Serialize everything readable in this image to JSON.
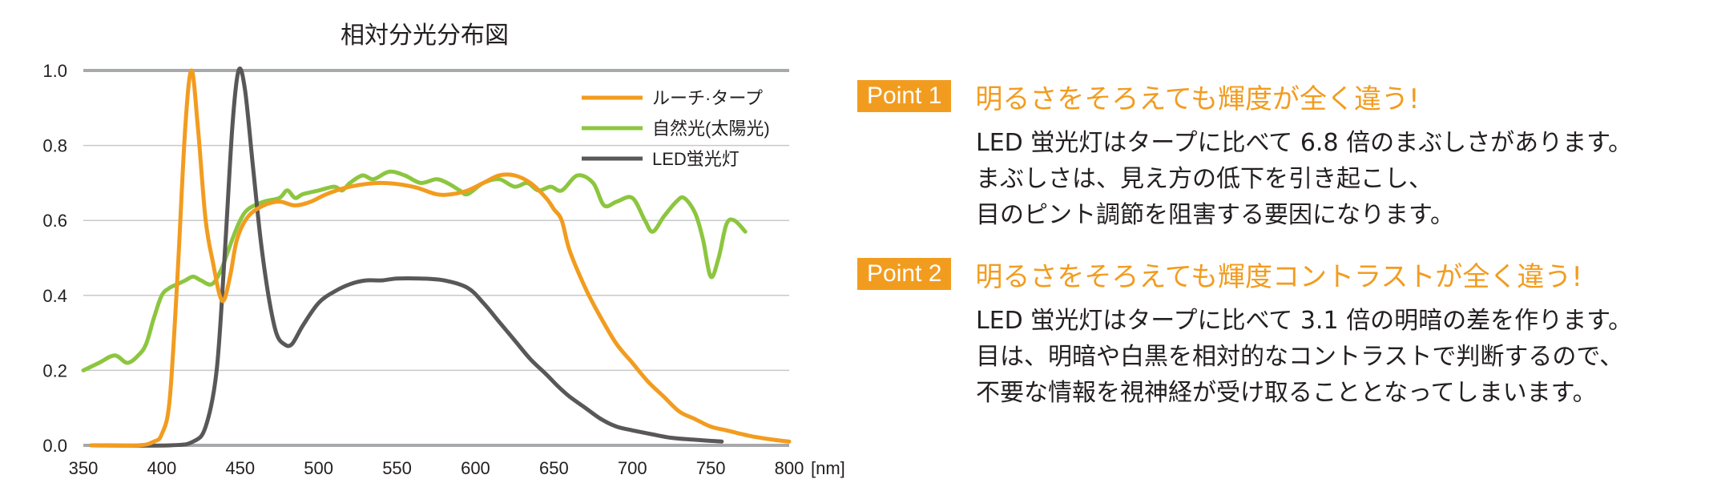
{
  "chart_data": {
    "type": "line",
    "title": "相対分光分布図",
    "xlabel": "",
    "ylabel": "",
    "x_unit_label": "[nm]",
    "xlim": [
      350,
      800
    ],
    "ylim": [
      0,
      1.0
    ],
    "x_ticks": [
      "350",
      "400",
      "450",
      "500",
      "550",
      "600",
      "650",
      "700",
      "750",
      "800"
    ],
    "y_ticks": [
      "0.0",
      "0.2",
      "0.4",
      "0.6",
      "0.8",
      "1.0"
    ],
    "grid": true,
    "legend_position": "top-right",
    "series": [
      {
        "name": "ルーチ·タープ",
        "color": "#f29c1f",
        "points": [
          [
            355,
            0
          ],
          [
            385,
            0
          ],
          [
            395,
            0.01
          ],
          [
            400,
            0.03
          ],
          [
            405,
            0.12
          ],
          [
            410,
            0.45
          ],
          [
            415,
            0.85
          ],
          [
            419,
            1.0
          ],
          [
            423,
            0.85
          ],
          [
            428,
            0.6
          ],
          [
            433,
            0.48
          ],
          [
            437,
            0.4
          ],
          [
            440,
            0.39
          ],
          [
            444,
            0.46
          ],
          [
            448,
            0.55
          ],
          [
            455,
            0.61
          ],
          [
            465,
            0.64
          ],
          [
            475,
            0.65
          ],
          [
            485,
            0.64
          ],
          [
            495,
            0.65
          ],
          [
            505,
            0.67
          ],
          [
            520,
            0.69
          ],
          [
            540,
            0.7
          ],
          [
            560,
            0.69
          ],
          [
            575,
            0.67
          ],
          [
            585,
            0.67
          ],
          [
            595,
            0.68
          ],
          [
            605,
            0.7
          ],
          [
            615,
            0.72
          ],
          [
            625,
            0.72
          ],
          [
            635,
            0.7
          ],
          [
            645,
            0.66
          ],
          [
            650,
            0.63
          ],
          [
            655,
            0.6
          ],
          [
            660,
            0.52
          ],
          [
            670,
            0.42
          ],
          [
            680,
            0.34
          ],
          [
            690,
            0.27
          ],
          [
            700,
            0.22
          ],
          [
            710,
            0.17
          ],
          [
            720,
            0.13
          ],
          [
            730,
            0.09
          ],
          [
            740,
            0.07
          ],
          [
            750,
            0.05
          ],
          [
            760,
            0.04
          ],
          [
            775,
            0.025
          ],
          [
            790,
            0.015
          ],
          [
            800,
            0.01
          ]
        ]
      },
      {
        "name": "自然光(太陽光)",
        "color": "#8cc63f",
        "points": [
          [
            350,
            0.2
          ],
          [
            360,
            0.22
          ],
          [
            370,
            0.24
          ],
          [
            378,
            0.22
          ],
          [
            385,
            0.24
          ],
          [
            390,
            0.27
          ],
          [
            395,
            0.34
          ],
          [
            400,
            0.4
          ],
          [
            405,
            0.42
          ],
          [
            410,
            0.43
          ],
          [
            415,
            0.44
          ],
          [
            420,
            0.45
          ],
          [
            425,
            0.44
          ],
          [
            432,
            0.43
          ],
          [
            438,
            0.47
          ],
          [
            445,
            0.55
          ],
          [
            450,
            0.6
          ],
          [
            455,
            0.63
          ],
          [
            465,
            0.65
          ],
          [
            475,
            0.66
          ],
          [
            480,
            0.68
          ],
          [
            485,
            0.66
          ],
          [
            490,
            0.67
          ],
          [
            500,
            0.68
          ],
          [
            510,
            0.69
          ],
          [
            515,
            0.68
          ],
          [
            520,
            0.7
          ],
          [
            528,
            0.72
          ],
          [
            535,
            0.71
          ],
          [
            545,
            0.73
          ],
          [
            555,
            0.72
          ],
          [
            565,
            0.7
          ],
          [
            575,
            0.71
          ],
          [
            582,
            0.7
          ],
          [
            590,
            0.68
          ],
          [
            595,
            0.67
          ],
          [
            605,
            0.7
          ],
          [
            615,
            0.71
          ],
          [
            625,
            0.69
          ],
          [
            633,
            0.7
          ],
          [
            640,
            0.68
          ],
          [
            648,
            0.69
          ],
          [
            655,
            0.68
          ],
          [
            665,
            0.72
          ],
          [
            675,
            0.7
          ],
          [
            682,
            0.64
          ],
          [
            690,
            0.65
          ],
          [
            700,
            0.66
          ],
          [
            708,
            0.6
          ],
          [
            713,
            0.57
          ],
          [
            720,
            0.61
          ],
          [
            728,
            0.65
          ],
          [
            733,
            0.66
          ],
          [
            740,
            0.62
          ],
          [
            745,
            0.55
          ],
          [
            750,
            0.45
          ],
          [
            755,
            0.5
          ],
          [
            760,
            0.59
          ],
          [
            765,
            0.6
          ],
          [
            772,
            0.57
          ]
        ]
      },
      {
        "name": "LED蛍光灯",
        "color": "#595757",
        "points": [
          [
            355,
            0
          ],
          [
            405,
            0
          ],
          [
            420,
            0.01
          ],
          [
            428,
            0.05
          ],
          [
            435,
            0.2
          ],
          [
            440,
            0.5
          ],
          [
            445,
            0.85
          ],
          [
            449,
            1.0
          ],
          [
            453,
            0.95
          ],
          [
            458,
            0.75
          ],
          [
            463,
            0.55
          ],
          [
            468,
            0.4
          ],
          [
            473,
            0.3
          ],
          [
            478,
            0.27
          ],
          [
            483,
            0.27
          ],
          [
            490,
            0.32
          ],
          [
            500,
            0.38
          ],
          [
            510,
            0.41
          ],
          [
            520,
            0.43
          ],
          [
            530,
            0.44
          ],
          [
            540,
            0.44
          ],
          [
            550,
            0.445
          ],
          [
            565,
            0.445
          ],
          [
            580,
            0.44
          ],
          [
            595,
            0.42
          ],
          [
            605,
            0.38
          ],
          [
            615,
            0.33
          ],
          [
            625,
            0.28
          ],
          [
            635,
            0.23
          ],
          [
            645,
            0.19
          ],
          [
            652,
            0.16
          ],
          [
            660,
            0.13
          ],
          [
            670,
            0.1
          ],
          [
            680,
            0.07
          ],
          [
            690,
            0.05
          ],
          [
            700,
            0.04
          ],
          [
            712,
            0.03
          ],
          [
            725,
            0.02
          ],
          [
            740,
            0.015
          ],
          [
            757,
            0.01
          ]
        ]
      }
    ]
  },
  "points": [
    {
      "badge": "Point 1",
      "headline": "明るさをそろえても輝度が全く違う!",
      "lines": [
        "LED 蛍光灯はタープに比べて 6.8 倍のまぶしさがあります。",
        "まぶしさは、見え方の低下を引き起こし、",
        "目のピント調節を阻害する要因になります。"
      ]
    },
    {
      "badge": "Point 2",
      "headline": "明るさをそろえても輝度コントラストが全く違う!",
      "lines": [
        "LED 蛍光灯はタープに比べて 3.1 倍の明暗の差を作ります。",
        "目は、明暗や白黒を相対的なコントラストで判断するので、",
        "不要な情報を視神経が受け取ることとなってしまいます。"
      ]
    }
  ]
}
